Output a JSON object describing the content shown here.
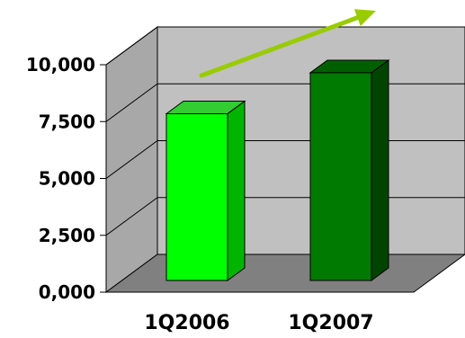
{
  "chart_data": {
    "type": "bar",
    "style": "3d",
    "categories": [
      "1Q2006",
      "1Q2007"
    ],
    "values": [
      8400,
      10200
    ],
    "ylim": [
      0,
      10000
    ],
    "yticks": [
      "0,000",
      "2,500",
      "5,000",
      "7,500",
      "10,000"
    ],
    "grid": true,
    "legend": "none",
    "trend_arrow": true,
    "colors": {
      "bar_1_front": "#00ff00",
      "bar_1_side": "#00b400",
      "bar_1_top": "#33cc33",
      "bar_2_front": "#007a00",
      "bar_2_side": "#004400",
      "bar_2_top": "#006000",
      "back_wall": "#c0c0c0",
      "side_wall": "#a8a8a8",
      "floor": "#808080",
      "arrow": "#99cc00"
    }
  }
}
